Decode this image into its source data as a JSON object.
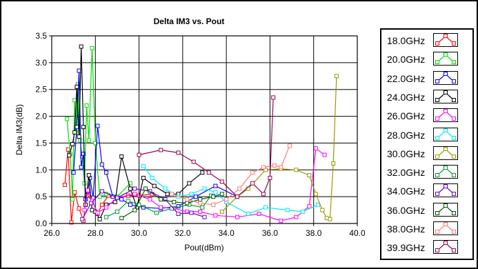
{
  "chart_data": {
    "type": "line",
    "title": "Delta IM3 vs. Pout",
    "xlabel": "Pout(dBm)",
    "ylabel": "Delta IM3(dB)",
    "xlim": [
      26.0,
      40.0
    ],
    "ylim": [
      0.0,
      3.5
    ],
    "xticks": [
      "26.0",
      "28.0",
      "30.0",
      "32.0",
      "34.0",
      "36.0",
      "38.0",
      "40.0"
    ],
    "yticks": [
      "0.0",
      "0.5",
      "1.0",
      "1.5",
      "2.0",
      "2.5",
      "3.0",
      "3.5"
    ],
    "grid": true,
    "legend_position": "right",
    "series": [
      {
        "name": "18.0GHz",
        "color": "#ff0000",
        "points": [
          [
            26.6,
            0.72
          ],
          [
            26.75,
            1.38
          ],
          [
            26.9,
            0.02
          ],
          [
            27.05,
            0.58
          ],
          [
            27.25,
            0.28
          ],
          [
            27.45,
            0.05
          ],
          [
            27.6,
            0.52
          ],
          [
            27.85,
            0.44
          ],
          [
            28.1,
            0.18
          ],
          [
            28.3,
            0.35
          ],
          [
            28.6,
            0.52
          ],
          [
            29.0,
            0.48
          ],
          [
            29.5,
            0.52
          ],
          [
            30.0,
            0.52
          ],
          [
            30.6,
            0.55
          ]
        ]
      },
      {
        "name": "20.0GHz",
        "color": "#00dd00",
        "points": [
          [
            26.7,
            1.95
          ],
          [
            26.85,
            1.3
          ],
          [
            26.95,
            0.45
          ],
          [
            27.05,
            2.3
          ],
          [
            27.1,
            1.7
          ],
          [
            27.2,
            2.6
          ],
          [
            27.3,
            1.55
          ],
          [
            27.4,
            1.25
          ],
          [
            27.5,
            0.75
          ],
          [
            27.6,
            2.2
          ],
          [
            27.7,
            1.55
          ],
          [
            27.85,
            3.27
          ],
          [
            28.0,
            1.5
          ],
          [
            28.2,
            0.5
          ],
          [
            28.5,
            0.55
          ],
          [
            29.0,
            0.5
          ],
          [
            29.6,
            0.75
          ]
        ]
      },
      {
        "name": "22.0GHz",
        "color": "#0000ff",
        "points": [
          [
            27.0,
            0.95
          ],
          [
            27.15,
            1.8
          ],
          [
            27.25,
            2.85
          ],
          [
            27.35,
            1.05
          ],
          [
            27.45,
            1.3
          ],
          [
            27.55,
            0.45
          ],
          [
            27.65,
            0.6
          ],
          [
            27.75,
            0.85
          ],
          [
            27.9,
            0.48
          ],
          [
            28.1,
            1.82
          ],
          [
            28.3,
            1.1
          ],
          [
            28.5,
            0.95
          ],
          [
            28.8,
            0.5
          ],
          [
            29.2,
            0.45
          ],
          [
            29.6,
            0.35
          ],
          [
            30.2,
            0.3
          ],
          [
            31.0,
            0.28
          ],
          [
            31.8,
            0.32
          ],
          [
            32.6,
            0.5
          ],
          [
            33.5,
            0.7
          ],
          [
            34.5,
            0.5
          ]
        ]
      },
      {
        "name": "24.0GHz",
        "color": "#000000",
        "points": [
          [
            26.8,
            1.27
          ],
          [
            26.95,
            1.48
          ],
          [
            27.05,
            1.7
          ],
          [
            27.15,
            2.55
          ],
          [
            27.25,
            1.62
          ],
          [
            27.35,
            3.3
          ],
          [
            27.45,
            1.8
          ],
          [
            27.55,
            0.35
          ],
          [
            27.7,
            0.9
          ],
          [
            27.85,
            0.25
          ],
          [
            28.0,
            0.22
          ],
          [
            28.2,
            0.08
          ],
          [
            28.5,
            0.35
          ],
          [
            28.9,
            0.4
          ],
          [
            29.2,
            1.25
          ],
          [
            29.6,
            0.65
          ],
          [
            29.9,
            0.3
          ],
          [
            30.2,
            0.85
          ],
          [
            30.7,
            0.7
          ],
          [
            31.3,
            0.55
          ],
          [
            31.8,
            0.55
          ],
          [
            32.3,
            0.75
          ],
          [
            32.9,
            0.95
          ]
        ]
      },
      {
        "name": "26.0GHz",
        "color": "#ff00ff",
        "points": [
          [
            27.5,
            0.25
          ],
          [
            27.65,
            0.62
          ],
          [
            27.85,
            0.42
          ],
          [
            28.1,
            0.2
          ],
          [
            28.5,
            0.3
          ],
          [
            29.0,
            0.48
          ],
          [
            29.8,
            0.55
          ],
          [
            30.5,
            0.45
          ],
          [
            31.0,
            0.3
          ],
          [
            31.6,
            0.28
          ],
          [
            32.2,
            0.22
          ],
          [
            32.8,
            0.22
          ],
          [
            33.5,
            0.15
          ],
          [
            34.5,
            0.12
          ],
          [
            35.5,
            0.18
          ],
          [
            36.5,
            0.05
          ],
          [
            37.2,
            0.12
          ],
          [
            37.8,
            0.32
          ],
          [
            38.1,
            1.4
          ],
          [
            38.5,
            1.28
          ]
        ]
      },
      {
        "name": "28.0GHz",
        "color": "#00e5ff",
        "points": [
          [
            30.2,
            1.07
          ],
          [
            30.6,
            0.85
          ],
          [
            31.2,
            0.65
          ],
          [
            31.8,
            0.5
          ],
          [
            32.4,
            0.55
          ],
          [
            33.0,
            0.65
          ],
          [
            33.5,
            0.58
          ],
          [
            34.0,
            0.4
          ],
          [
            35.0,
            0.18
          ],
          [
            35.8,
            0.3
          ],
          [
            36.8,
            0.25
          ],
          [
            37.5,
            0.22
          ],
          [
            38.2,
            0.35
          ]
        ]
      },
      {
        "name": "30.0GHz",
        "color": "#999900",
        "points": [
          [
            33.8,
            0.22
          ],
          [
            34.5,
            0.5
          ],
          [
            35.0,
            0.65
          ],
          [
            35.8,
            1.0
          ],
          [
            36.5,
            1.02
          ],
          [
            37.2,
            1.0
          ],
          [
            37.8,
            0.9
          ],
          [
            38.1,
            0.55
          ],
          [
            38.4,
            0.25
          ],
          [
            38.6,
            0.1
          ],
          [
            38.75,
            0.08
          ],
          [
            38.9,
            1.12
          ],
          [
            39.05,
            2.75
          ]
        ]
      },
      {
        "name": "32.0GHz",
        "color": "#009944",
        "points": [
          [
            28.5,
            0.12
          ],
          [
            29.0,
            0.22
          ],
          [
            29.5,
            0.42
          ],
          [
            30.0,
            0.35
          ],
          [
            30.8,
            0.2
          ],
          [
            31.5,
            0.28
          ],
          [
            32.3,
            0.35
          ],
          [
            32.9,
            0.3
          ],
          [
            33.3,
            0.52
          ]
        ]
      },
      {
        "name": "34.0GHz",
        "color": "#6600cc",
        "points": [
          [
            27.4,
            0.08
          ],
          [
            27.8,
            0.38
          ],
          [
            28.3,
            0.6
          ],
          [
            29.0,
            0.48
          ],
          [
            29.8,
            0.65
          ],
          [
            30.5,
            0.6
          ],
          [
            31.2,
            0.45
          ],
          [
            31.8,
            0.18
          ],
          [
            32.4,
            0.2
          ],
          [
            33.0,
            0.12
          ]
        ]
      },
      {
        "name": "36.0GHz",
        "color": "#005500",
        "points": [
          [
            29.2,
            0.1
          ],
          [
            29.8,
            0.25
          ],
          [
            30.3,
            0.65
          ],
          [
            31.0,
            0.45
          ],
          [
            31.6,
            0.4
          ],
          [
            32.2,
            0.38
          ],
          [
            32.8,
            0.45
          ],
          [
            33.4,
            0.5
          ],
          [
            33.8,
            0.55
          ]
        ]
      },
      {
        "name": "38.0GHz",
        "color": "#ff7777",
        "points": [
          [
            31.5,
            0.55
          ],
          [
            32.2,
            0.45
          ],
          [
            32.8,
            0.38
          ],
          [
            33.4,
            0.35
          ],
          [
            34.0,
            0.45
          ],
          [
            34.6,
            0.65
          ],
          [
            35.2,
            0.95
          ],
          [
            35.7,
            1.05
          ],
          [
            36.2,
            1.08
          ],
          [
            36.5,
            1.05
          ],
          [
            36.9,
            1.45
          ]
        ]
      },
      {
        "name": "39.9GHz",
        "color": "#990055",
        "points": [
          [
            30.0,
            1.28
          ],
          [
            31.0,
            1.37
          ],
          [
            31.8,
            1.32
          ],
          [
            32.5,
            1.15
          ],
          [
            33.2,
            0.95
          ],
          [
            33.8,
            0.78
          ],
          [
            34.5,
            0.5
          ],
          [
            35.2,
            0.75
          ],
          [
            35.7,
            0.55
          ],
          [
            36.0,
            0.85
          ],
          [
            36.15,
            2.35
          ]
        ]
      }
    ]
  }
}
